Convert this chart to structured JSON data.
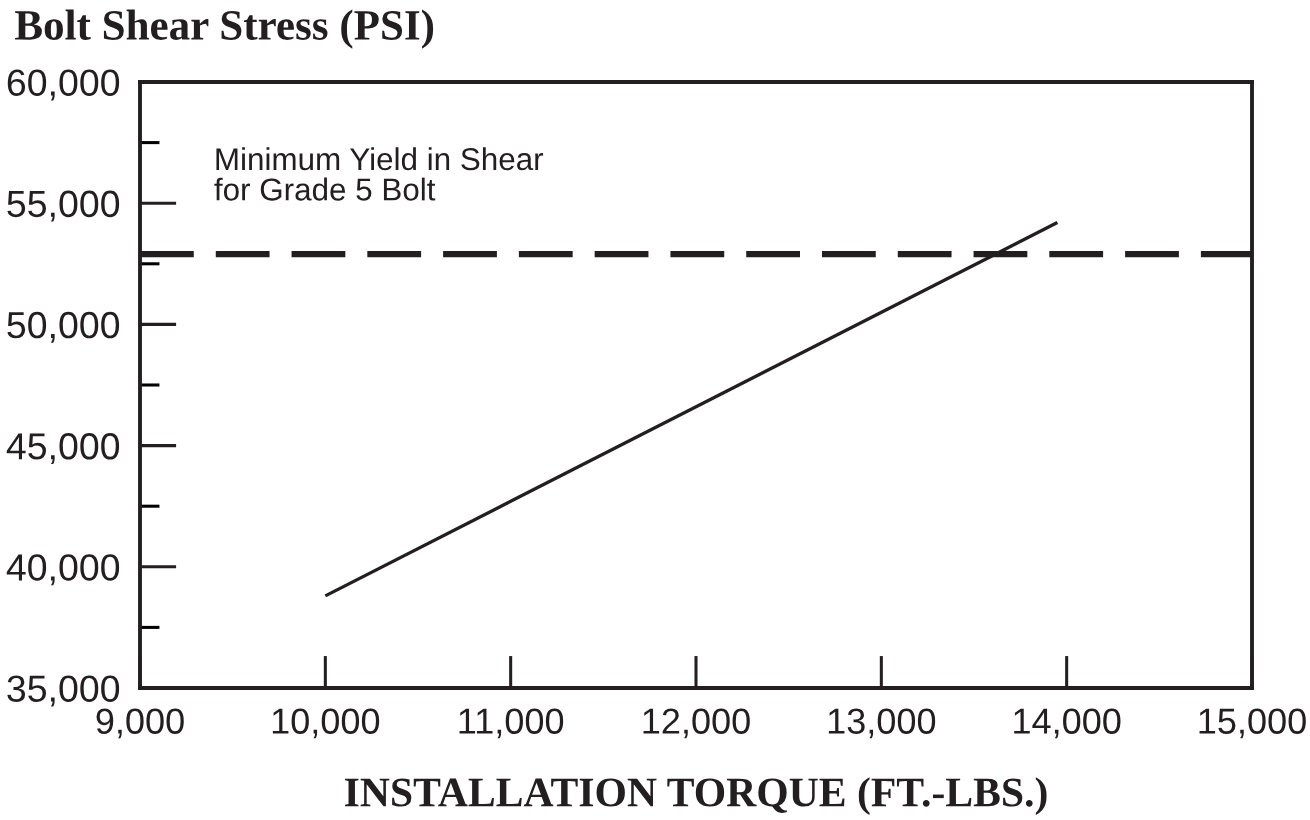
{
  "chart_data": {
    "type": "line",
    "ylabel": "Bolt Shear Stress (PSI)",
    "xlabel": "INSTALLATION TORQUE (FT.-LBS.)",
    "x": [
      10000,
      13950
    ],
    "series": [
      {
        "color": "#231f20",
        "values": [
          38800,
          54200
        ]
      }
    ],
    "xlim": [
      9000,
      15000
    ],
    "xticks": [
      {
        "value": 9000,
        "label": "9,000"
      },
      {
        "value": 10000,
        "label": "10,000"
      },
      {
        "value": 11000,
        "label": "11,000"
      },
      {
        "value": 12000,
        "label": "12,000"
      },
      {
        "value": 13000,
        "label": "13,000"
      },
      {
        "value": 14000,
        "label": "14,000"
      },
      {
        "value": 15000,
        "label": "15,000"
      }
    ],
    "ylim": [
      35000,
      60000
    ],
    "yticks": [
      {
        "value": 35000,
        "label": "35,000"
      },
      {
        "value": 37500,
        "label": null
      },
      {
        "value": 40000,
        "label": "40,000"
      },
      {
        "value": 42500,
        "label": null
      },
      {
        "value": 45000,
        "label": "45,000"
      },
      {
        "value": 47500,
        "label": null
      },
      {
        "value": 50000,
        "label": "50,000"
      },
      {
        "value": 52500,
        "label": null
      },
      {
        "value": 55000,
        "label": "55,000"
      },
      {
        "value": 57500,
        "label": null
      },
      {
        "value": 60000,
        "label": "60,000"
      }
    ],
    "ref_lines": [
      {
        "axis": "y",
        "value": 52900,
        "label": "Minimum Yield in Shear\nfor Grade 5 Bolt",
        "color": "#231f20",
        "line_style": "dashed"
      }
    ],
    "marker": "none",
    "line_style": "solid"
  }
}
